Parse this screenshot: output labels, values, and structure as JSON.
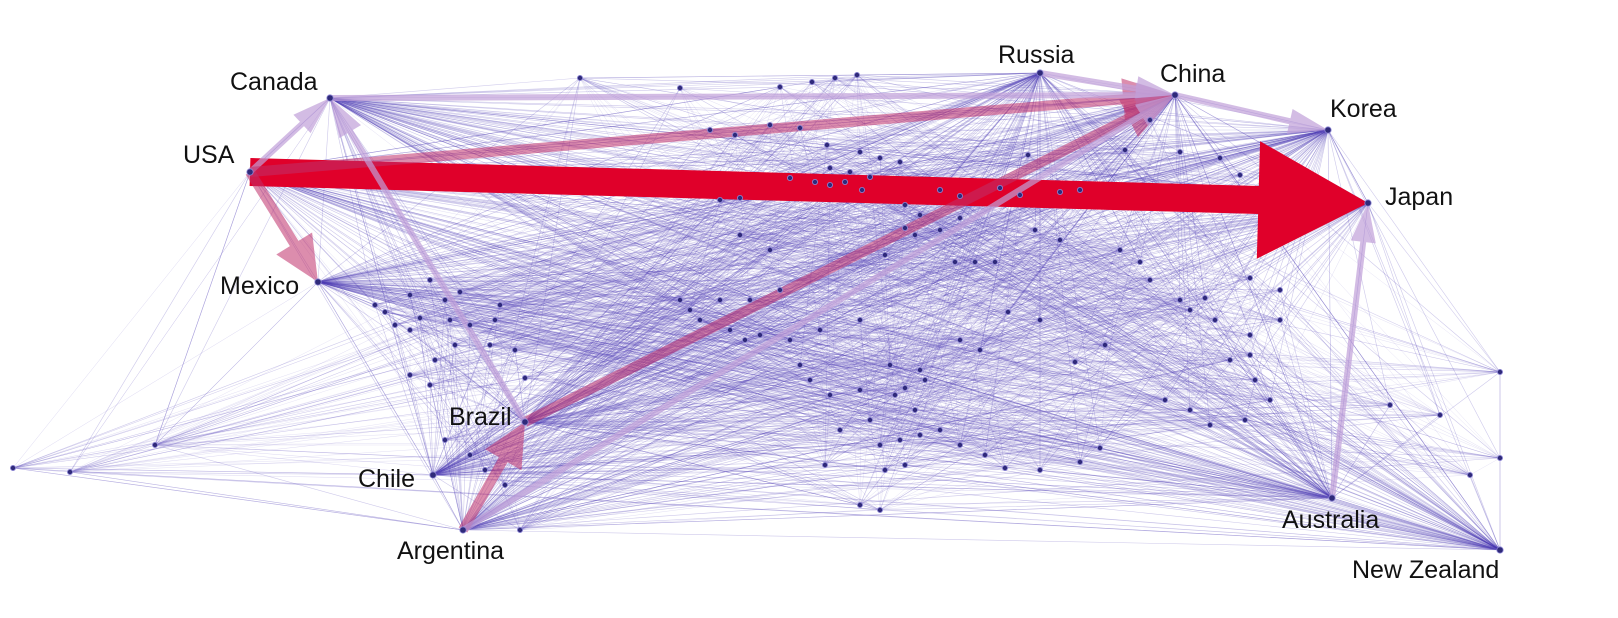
{
  "diagram": {
    "type": "network",
    "colors": {
      "edge": "#4a3ab2",
      "edge_light": "#8b7fd0",
      "node": "#2f2a7a",
      "major_flow": "#e0002a",
      "medium_flow": "#c0306a",
      "minor_flow": "#c0a0d8"
    },
    "labeled_nodes": [
      {
        "id": "usa",
        "label": "USA"
      },
      {
        "id": "canada",
        "label": "Canada"
      },
      {
        "id": "mexico",
        "label": "Mexico"
      },
      {
        "id": "russia",
        "label": "Russia"
      },
      {
        "id": "china",
        "label": "China"
      },
      {
        "id": "korea",
        "label": "Korea"
      },
      {
        "id": "japan",
        "label": "Japan"
      },
      {
        "id": "brazil",
        "label": "Brazil"
      },
      {
        "id": "chile",
        "label": "Chile"
      },
      {
        "id": "argentina",
        "label": "Argentina"
      },
      {
        "id": "australia",
        "label": "Australia"
      },
      {
        "id": "new_zealand",
        "label": "New Zealand"
      }
    ],
    "flows": [
      {
        "from": "usa",
        "to": "japan",
        "weight": "major"
      },
      {
        "from": "usa",
        "to": "mexico",
        "weight": "medium"
      },
      {
        "from": "usa",
        "to": "canada",
        "weight": "minor"
      },
      {
        "from": "usa",
        "to": "china",
        "weight": "medium"
      },
      {
        "from": "canada",
        "to": "china",
        "weight": "minor"
      },
      {
        "from": "russia",
        "to": "china",
        "weight": "minor"
      },
      {
        "from": "china",
        "to": "korea",
        "weight": "minor"
      },
      {
        "from": "brazil",
        "to": "china",
        "weight": "medium"
      },
      {
        "from": "brazil",
        "to": "canada",
        "weight": "minor"
      },
      {
        "from": "argentina",
        "to": "brazil",
        "weight": "medium"
      },
      {
        "from": "argentina",
        "to": "china",
        "weight": "minor"
      },
      {
        "from": "australia",
        "to": "japan",
        "weight": "minor"
      }
    ]
  }
}
